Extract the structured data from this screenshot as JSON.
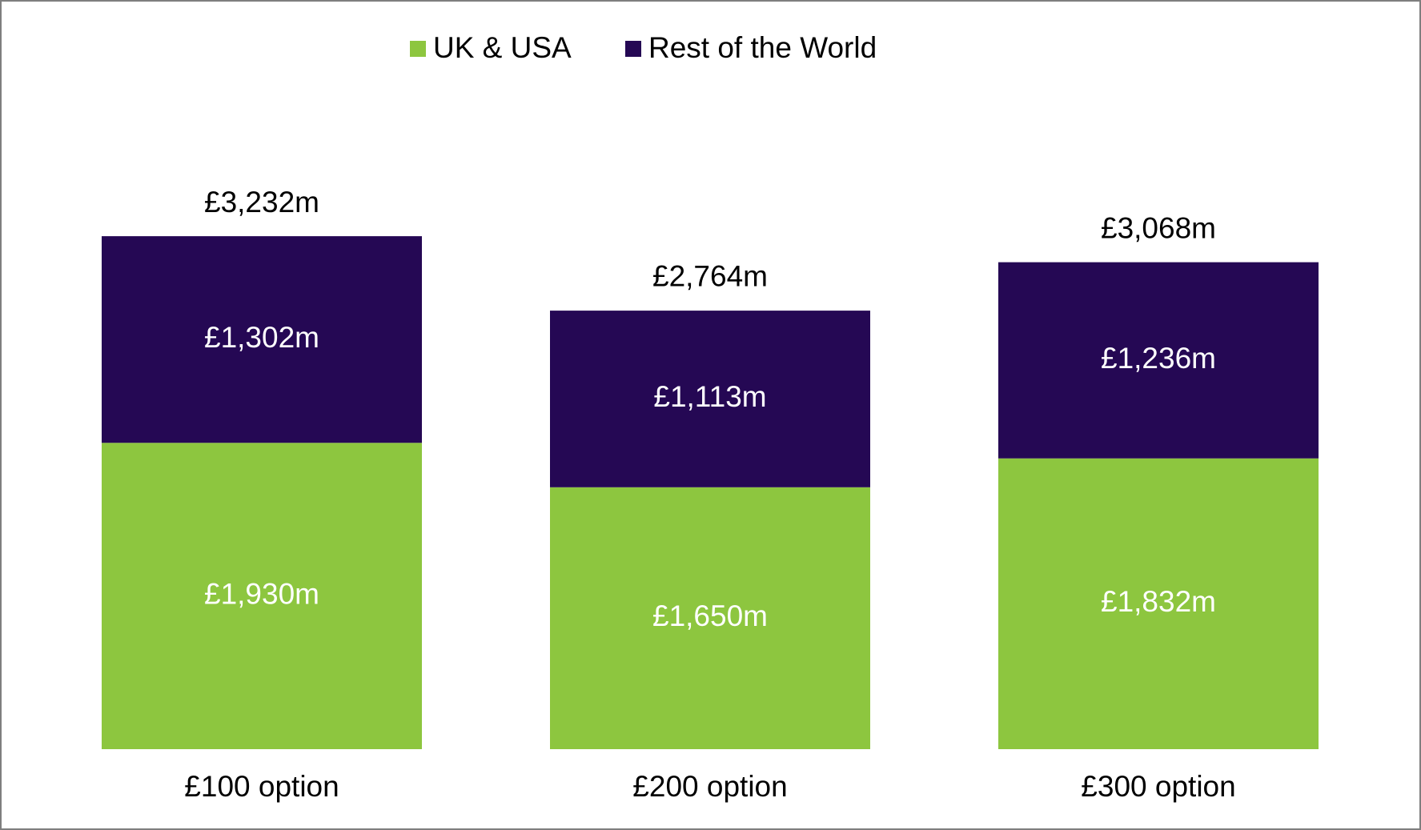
{
  "chart_data": {
    "type": "stacked-bar",
    "categories": [
      "£100 option",
      "£200 option",
      "£300 option"
    ],
    "series": [
      {
        "name": "UK & USA",
        "color": "#8dc63f",
        "values": [
          1930,
          1650,
          1832
        ],
        "value_labels": [
          "£1,930m",
          "£1,650m",
          "£1,832m"
        ]
      },
      {
        "name": "Rest of the World",
        "color": "#250854",
        "values": [
          1302,
          1113,
          1236
        ],
        "value_labels": [
          "£1,302m",
          "£1,113m",
          "£1,236m"
        ]
      }
    ],
    "totals": {
      "values": [
        3232,
        2764,
        3068
      ],
      "value_labels": [
        "£3,232m",
        "£2,764m",
        "£3,068m"
      ]
    }
  }
}
